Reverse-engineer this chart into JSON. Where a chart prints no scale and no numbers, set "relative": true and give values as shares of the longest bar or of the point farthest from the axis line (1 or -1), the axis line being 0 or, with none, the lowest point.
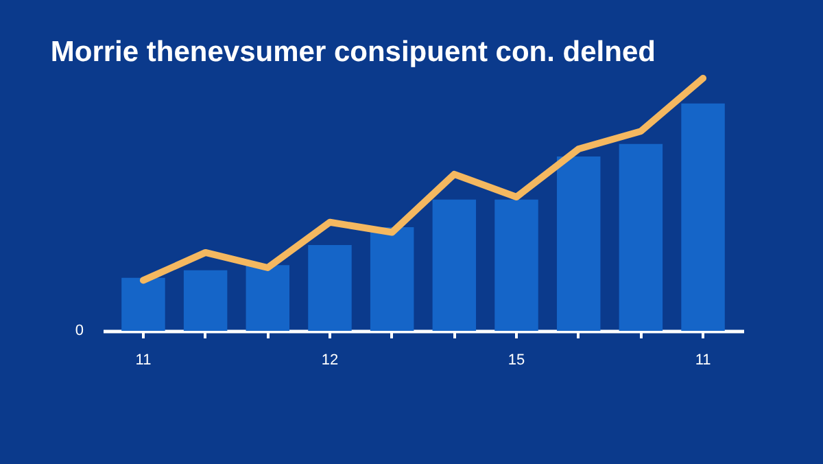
{
  "chart_data": {
    "type": "bar",
    "title": "Morrie thenevsumer consipuent con. delned",
    "relative": true,
    "categories": [
      "11",
      null,
      null,
      "12",
      null,
      null,
      "15",
      null,
      null,
      "11"
    ],
    "series": [
      {
        "color": "#1565c8",
        "values": [
          0.21,
          0.24,
          0.26,
          0.34,
          0.41,
          0.52,
          0.52,
          0.69,
          0.74,
          0.9
        ]
      },
      {
        "type": "line",
        "color": "#f4b860",
        "values": [
          0.2,
          0.31,
          0.25,
          0.43,
          0.39,
          0.62,
          0.53,
          0.72,
          0.79,
          1.0
        ]
      }
    ],
    "annotations": [
      "0"
    ]
  }
}
